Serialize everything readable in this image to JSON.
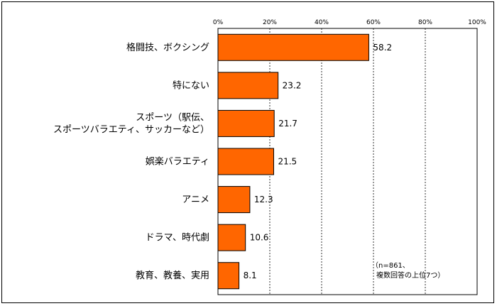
{
  "chart_data": {
    "type": "bar",
    "orientation": "horizontal",
    "categories": [
      [
        "格闘技、ボクシング"
      ],
      [
        "特にない"
      ],
      [
        "スポーツ（駅伝、",
        "スポーツバラエティ、サッカーなど）"
      ],
      [
        "娯楽バラエティ"
      ],
      [
        "アニメ"
      ],
      [
        "ドラマ、時代劇"
      ],
      [
        "教育、教養、実用"
      ]
    ],
    "values": [
      58.2,
      23.2,
      21.7,
      21.5,
      12.3,
      10.6,
      8.1
    ],
    "value_labels": [
      "58.2",
      "23.2",
      "21.7",
      "21.5",
      "12.3",
      "10.6",
      "8.1"
    ],
    "xlim": [
      0,
      100
    ],
    "xticks": [
      0,
      20,
      40,
      60,
      80,
      100
    ],
    "xtick_labels": [
      "0%",
      "20%",
      "40%",
      "60%",
      "80%",
      "100%"
    ],
    "grid": "vertical dashed",
    "bar_color": "#ff6600",
    "bar_edge_color": "#000000",
    "annotation": [
      "（n=861、",
      "複数回答の上位7つ）"
    ]
  }
}
